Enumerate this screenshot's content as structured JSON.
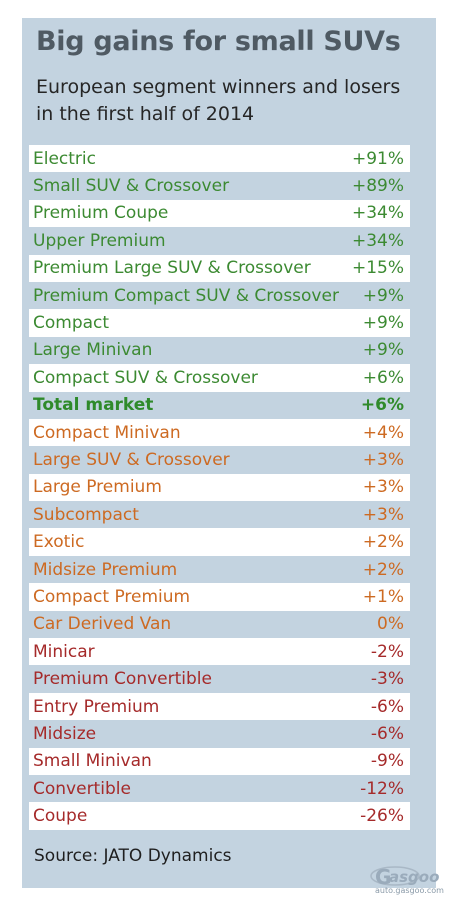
{
  "chart_data": {
    "type": "table",
    "title": "Big gains for small SUVs",
    "subtitle": "European segment winners and losers in the first half of 2014",
    "source": "Source: JATO Dynamics",
    "colors": {
      "gain_large": "#3c8a32",
      "gain_small": "#cd6a22",
      "decline": "#a52a2a",
      "total": "#2f8a2a"
    },
    "rows": [
      {
        "segment": "Electric",
        "change": "+91%",
        "value": 91,
        "tier": "win"
      },
      {
        "segment": "Small SUV & Crossover",
        "change": "+89%",
        "value": 89,
        "tier": "win"
      },
      {
        "segment": "Premium Coupe",
        "change": "+34%",
        "value": 34,
        "tier": "win"
      },
      {
        "segment": "Upper Premium",
        "change": "+34%",
        "value": 34,
        "tier": "win"
      },
      {
        "segment": "Premium Large SUV & Crossover",
        "change": "+15%",
        "value": 15,
        "tier": "win"
      },
      {
        "segment": "Premium Compact SUV & Crossover",
        "change": "+9%",
        "value": 9,
        "tier": "win"
      },
      {
        "segment": "Compact",
        "change": "+9%",
        "value": 9,
        "tier": "win"
      },
      {
        "segment": "Large Minivan",
        "change": "+9%",
        "value": 9,
        "tier": "win"
      },
      {
        "segment": "Compact SUV & Crossover",
        "change": "+6%",
        "value": 6,
        "tier": "win"
      },
      {
        "segment": "Total market",
        "change": "+6%",
        "value": 6,
        "tier": "total"
      },
      {
        "segment": "Compact Minivan",
        "change": "+4%",
        "value": 4,
        "tier": "mid"
      },
      {
        "segment": "Large SUV & Crossover",
        "change": "+3%",
        "value": 3,
        "tier": "mid"
      },
      {
        "segment": "Large Premium",
        "change": "+3%",
        "value": 3,
        "tier": "mid"
      },
      {
        "segment": "Subcompact",
        "change": "+3%",
        "value": 3,
        "tier": "mid"
      },
      {
        "segment": "Exotic",
        "change": "+2%",
        "value": 2,
        "tier": "mid"
      },
      {
        "segment": "Midsize Premium",
        "change": "+2%",
        "value": 2,
        "tier": "mid"
      },
      {
        "segment": "Compact Premium",
        "change": "+1%",
        "value": 1,
        "tier": "mid"
      },
      {
        "segment": "Car Derived Van",
        "change": "0%",
        "value": 0,
        "tier": "mid"
      },
      {
        "segment": "Minicar",
        "change": "-2%",
        "value": -2,
        "tier": "lose"
      },
      {
        "segment": "Premium Convertible",
        "change": "-3%",
        "value": -3,
        "tier": "lose"
      },
      {
        "segment": "Entry Premium",
        "change": "-6%",
        "value": -6,
        "tier": "lose"
      },
      {
        "segment": "Midsize",
        "change": "-6%",
        "value": -6,
        "tier": "lose"
      },
      {
        "segment": "Small Minivan",
        "change": "-9%",
        "value": -9,
        "tier": "lose"
      },
      {
        "segment": "Convertible",
        "change": "-12%",
        "value": -12,
        "tier": "lose"
      },
      {
        "segment": "Coupe",
        "change": "-26%",
        "value": -26,
        "tier": "lose"
      }
    ]
  },
  "watermark": {
    "icon": "gasgoo-logo",
    "text": "auto.gasgoo.com"
  }
}
